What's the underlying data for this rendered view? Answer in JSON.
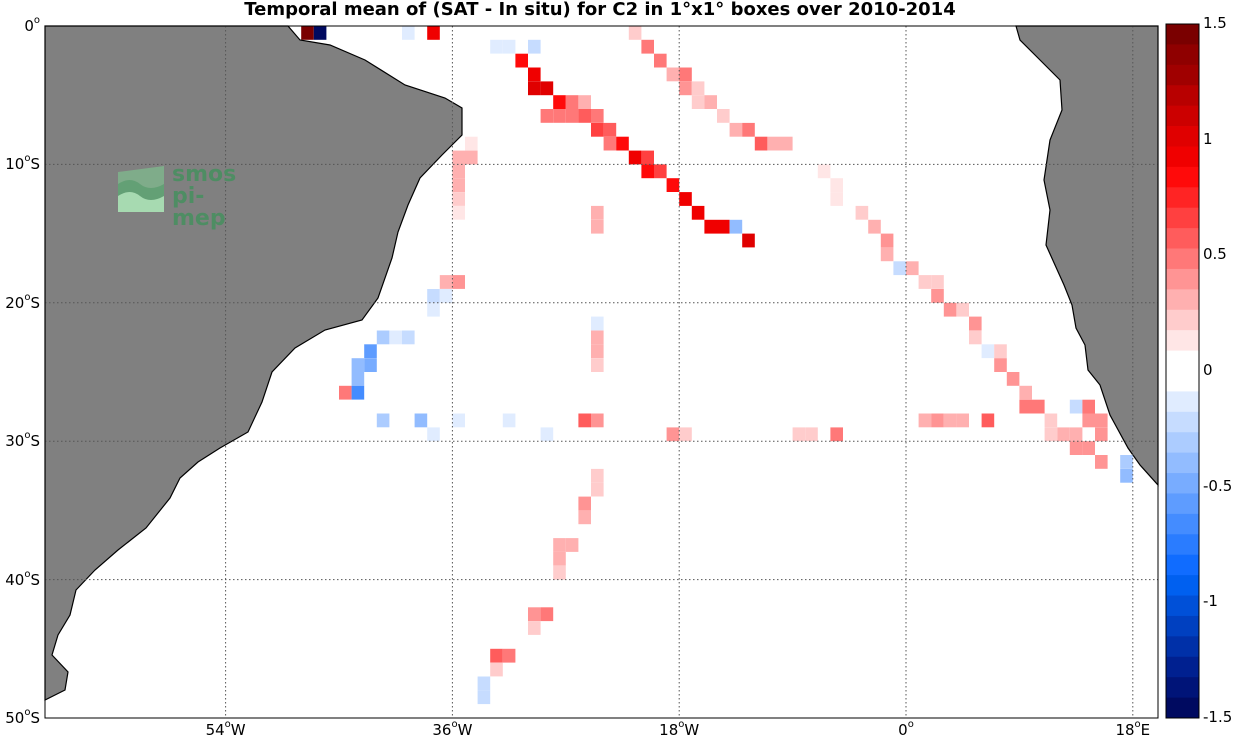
{
  "title": "Temporal mean of (SAT - In situ) for C2 in 1°x1° boxes over 2010-2014",
  "logo": {
    "line1": "smos",
    "line2": "pi-mep"
  },
  "latitude_labels": [
    {
      "value": 0,
      "text": "0",
      "suffix": ""
    },
    {
      "value": -10,
      "text": "10",
      "suffix": "S"
    },
    {
      "value": -20,
      "text": "20",
      "suffix": "S"
    },
    {
      "value": -30,
      "text": "30",
      "suffix": "S"
    },
    {
      "value": -40,
      "text": "40",
      "suffix": "S"
    },
    {
      "value": -50,
      "text": "50",
      "suffix": "S"
    }
  ],
  "longitude_labels": [
    {
      "value": -54,
      "text": "54",
      "suffix": "W"
    },
    {
      "value": -36,
      "text": "36",
      "suffix": "W"
    },
    {
      "value": -18,
      "text": "18",
      "suffix": "W"
    },
    {
      "value": 0,
      "text": "0",
      "suffix": ""
    },
    {
      "value": 18,
      "text": "18",
      "suffix": "E"
    }
  ],
  "colorbar": {
    "min": -1.5,
    "max": 1.5,
    "labels": [
      "1.5",
      "1",
      "0.5",
      "0",
      "-0.5",
      "-1",
      "-1.5"
    ],
    "label_values": [
      1.5,
      1,
      0.5,
      0,
      -0.5,
      -1,
      -1.5
    ],
    "colors": [
      "#7a0000",
      "#8f0000",
      "#a00000",
      "#b80000",
      "#cc0000",
      "#e00000",
      "#f00000",
      "#ff0a0a",
      "#ff2424",
      "#ff4040",
      "#ff5c5c",
      "#ff7878",
      "#ff9494",
      "#ffb0b0",
      "#ffcccc",
      "#ffe6e6",
      "#ffffff",
      "#ffffff",
      "#e0ecff",
      "#c6dcff",
      "#acccff",
      "#92bcff",
      "#78acff",
      "#5e9cff",
      "#448cff",
      "#2a7cff",
      "#106cff",
      "#0060f0",
      "#0050d8",
      "#0040c0",
      "#0030a8",
      "#002090",
      "#001478",
      "#000a60"
    ]
  },
  "colors": {
    "land": "#808080",
    "coast": "#000000",
    "grid": "#555555",
    "frame": "#000000"
  },
  "chart_data": {
    "type": "heatmap",
    "title": "Temporal mean of (SAT - In situ) for C2 in 1°x1° boxes over 2010-2014",
    "xlim": [
      -70,
      20
    ],
    "ylim": [
      -50,
      0
    ],
    "colorbar_range": [
      -1.5,
      1.5
    ],
    "cells": [
      [
        -47.5,
        -0.5,
        1.5
      ],
      [
        -46.5,
        -0.5,
        -1.5
      ],
      [
        -37.5,
        -0.5,
        0.9
      ],
      [
        -39.5,
        -0.5,
        -0.1
      ],
      [
        -31.5,
        -1.5,
        -0.15
      ],
      [
        -32.5,
        -1.5,
        -0.15
      ],
      [
        -29.5,
        -1.5,
        -0.2
      ],
      [
        -30.5,
        -2.5,
        0.8
      ],
      [
        -29.5,
        -3.5,
        0.9
      ],
      [
        -29.5,
        -4.5,
        1.0
      ],
      [
        -28.5,
        -4.5,
        1.0
      ],
      [
        -27.5,
        -5.5,
        0.8
      ],
      [
        -26.5,
        -5.5,
        0.5
      ],
      [
        -25.5,
        -5.5,
        0.3
      ],
      [
        -28.5,
        -6.5,
        0.5
      ],
      [
        -27.5,
        -6.5,
        0.5
      ],
      [
        -26.5,
        -6.5,
        0.5
      ],
      [
        -25.5,
        -6.5,
        0.6
      ],
      [
        -24.5,
        -6.5,
        0.5
      ],
      [
        -24.5,
        -7.5,
        0.7
      ],
      [
        -23.5,
        -7.5,
        0.6
      ],
      [
        -23.5,
        -8.5,
        0.5
      ],
      [
        -22.5,
        -8.5,
        0.8
      ],
      [
        -21.5,
        -9.5,
        0.9
      ],
      [
        -20.5,
        -9.5,
        0.7
      ],
      [
        -20.5,
        -10.5,
        0.8
      ],
      [
        -19.5,
        -10.5,
        0.7
      ],
      [
        -18.5,
        -11.5,
        0.8
      ],
      [
        -17.5,
        -12.5,
        0.9
      ],
      [
        -16.5,
        -13.5,
        0.9
      ],
      [
        -15.5,
        -14.5,
        0.9
      ],
      [
        -14.5,
        -14.5,
        0.9
      ],
      [
        -13.5,
        -14.5,
        -0.4
      ],
      [
        -12.5,
        -15.5,
        1.0
      ],
      [
        -21.5,
        -0.5,
        0.2
      ],
      [
        -20.5,
        -1.5,
        0.5
      ],
      [
        -19.5,
        -2.5,
        0.5
      ],
      [
        -18.5,
        -3.5,
        0.3
      ],
      [
        -17.5,
        -3.5,
        0.5
      ],
      [
        -17.5,
        -4.5,
        0.4
      ],
      [
        -16.5,
        -4.5,
        0.2
      ],
      [
        -16.5,
        -5.5,
        0.2
      ],
      [
        -15.5,
        -5.5,
        0.3
      ],
      [
        -14.5,
        -6.5,
        0.2
      ],
      [
        -13.5,
        -7.5,
        0.3
      ],
      [
        -12.5,
        -7.5,
        0.5
      ],
      [
        -11.5,
        -8.5,
        0.6
      ],
      [
        -10.5,
        -8.5,
        0.3
      ],
      [
        -9.5,
        -8.5,
        0.3
      ],
      [
        -6.5,
        -10.5,
        0.15
      ],
      [
        -5.5,
        -11.5,
        0.15
      ],
      [
        -5.5,
        -12.5,
        0.15
      ],
      [
        -3.5,
        -13.5,
        0.2
      ],
      [
        -2.5,
        -14.5,
        0.3
      ],
      [
        -1.5,
        -15.5,
        0.4
      ],
      [
        -1.5,
        -16.5,
        0.3
      ],
      [
        -0.5,
        -17.5,
        -0.2
      ],
      [
        0.5,
        -17.5,
        0.3
      ],
      [
        1.5,
        -18.5,
        0.2
      ],
      [
        2.5,
        -18.5,
        0.2
      ],
      [
        2.5,
        -19.5,
        0.4
      ],
      [
        3.5,
        -20.5,
        0.4
      ],
      [
        4.5,
        -20.5,
        0.2
      ],
      [
        5.5,
        -21.5,
        0.4
      ],
      [
        5.5,
        -22.5,
        0.2
      ],
      [
        6.5,
        -23.5,
        -0.1
      ],
      [
        7.5,
        -23.5,
        0.2
      ],
      [
        7.5,
        -24.5,
        0.4
      ],
      [
        8.5,
        -25.5,
        0.4
      ],
      [
        9.5,
        -26.5,
        0.3
      ],
      [
        9.5,
        -27.5,
        0.5
      ],
      [
        10.5,
        -27.5,
        0.5
      ],
      [
        11.5,
        -28.5,
        0.2
      ],
      [
        12.5,
        -29.5,
        0.3
      ],
      [
        13.5,
        -29.5,
        0.3
      ],
      [
        14.5,
        -28.5,
        0.4
      ],
      [
        13.5,
        -27.5,
        -0.2
      ],
      [
        14.5,
        -27.5,
        0.5
      ],
      [
        15.5,
        -28.5,
        0.4
      ],
      [
        15.5,
        -29.5,
        0.4
      ],
      [
        13.5,
        -30.5,
        0.4
      ],
      [
        14.5,
        -30.5,
        0.4
      ],
      [
        15.5,
        -31.5,
        0.4
      ],
      [
        17.5,
        -31.5,
        -0.3
      ],
      [
        17.5,
        -32.5,
        -0.4
      ],
      [
        11.5,
        -29.5,
        0.2
      ],
      [
        -34.5,
        -8.5,
        0.15
      ],
      [
        -35.5,
        -9.5,
        0.3
      ],
      [
        -34.5,
        -9.5,
        0.3
      ],
      [
        -35.5,
        -10.5,
        0.3
      ],
      [
        -35.5,
        -11.5,
        0.3
      ],
      [
        -35.5,
        -12.5,
        0.2
      ],
      [
        -35.5,
        -13.5,
        0.15
      ],
      [
        -24.5,
        -13.5,
        0.3
      ],
      [
        -24.5,
        -14.5,
        0.3
      ],
      [
        -36.5,
        -18.5,
        0.3
      ],
      [
        -35.5,
        -18.5,
        0.4
      ],
      [
        -37.5,
        -19.5,
        -0.2
      ],
      [
        -36.5,
        -19.5,
        -0.1
      ],
      [
        -37.5,
        -20.5,
        -0.15
      ],
      [
        -41.5,
        -22.5,
        -0.3
      ],
      [
        -40.5,
        -22.5,
        -0.15
      ],
      [
        -39.5,
        -22.5,
        -0.2
      ],
      [
        -42.5,
        -23.5,
        -0.6
      ],
      [
        -43.5,
        -24.5,
        -0.4
      ],
      [
        -42.5,
        -24.5,
        -0.5
      ],
      [
        -43.5,
        -25.5,
        -0.4
      ],
      [
        -44.5,
        -26.5,
        0.5
      ],
      [
        -43.5,
        -26.5,
        -0.7
      ],
      [
        -24.5,
        -21.5,
        -0.15
      ],
      [
        -24.5,
        -22.5,
        0.3
      ],
      [
        -24.5,
        -23.5,
        0.3
      ],
      [
        -24.5,
        -24.5,
        0.2
      ],
      [
        -41.5,
        -28.5,
        -0.3
      ],
      [
        -38.5,
        -28.5,
        -0.4
      ],
      [
        -37.5,
        -29.5,
        -0.15
      ],
      [
        -35.5,
        -28.5,
        -0.15
      ],
      [
        -31.5,
        -28.5,
        -0.1
      ],
      [
        -28.5,
        -29.5,
        -0.15
      ],
      [
        -25.5,
        -28.5,
        0.6
      ],
      [
        -24.5,
        -28.5,
        0.4
      ],
      [
        -18.5,
        -29.5,
        0.4
      ],
      [
        -17.5,
        -29.5,
        0.2
      ],
      [
        -8.5,
        -29.5,
        0.2
      ],
      [
        -7.5,
        -29.5,
        0.2
      ],
      [
        -5.5,
        -29.5,
        0.5
      ],
      [
        1.5,
        -28.5,
        0.3
      ],
      [
        2.5,
        -28.5,
        0.4
      ],
      [
        3.5,
        -28.5,
        0.3
      ],
      [
        4.5,
        -28.5,
        0.3
      ],
      [
        6.5,
        -28.5,
        0.6
      ],
      [
        -24.5,
        -32.5,
        0.2
      ],
      [
        -24.5,
        -33.5,
        0.2
      ],
      [
        -25.5,
        -34.5,
        0.4
      ],
      [
        -25.5,
        -35.5,
        0.3
      ],
      [
        -27.5,
        -37.5,
        0.3
      ],
      [
        -26.5,
        -37.5,
        0.3
      ],
      [
        -27.5,
        -38.5,
        0.3
      ],
      [
        -27.5,
        -39.5,
        0.2
      ],
      [
        -29.5,
        -42.5,
        0.4
      ],
      [
        -28.5,
        -42.5,
        0.5
      ],
      [
        -29.5,
        -43.5,
        0.2
      ],
      [
        -32.5,
        -45.5,
        0.6
      ],
      [
        -31.5,
        -45.5,
        0.5
      ],
      [
        -32.5,
        -46.5,
        0.2
      ],
      [
        -33.5,
        -47.5,
        -0.2
      ],
      [
        -33.5,
        -48.5,
        -0.2
      ]
    ]
  }
}
